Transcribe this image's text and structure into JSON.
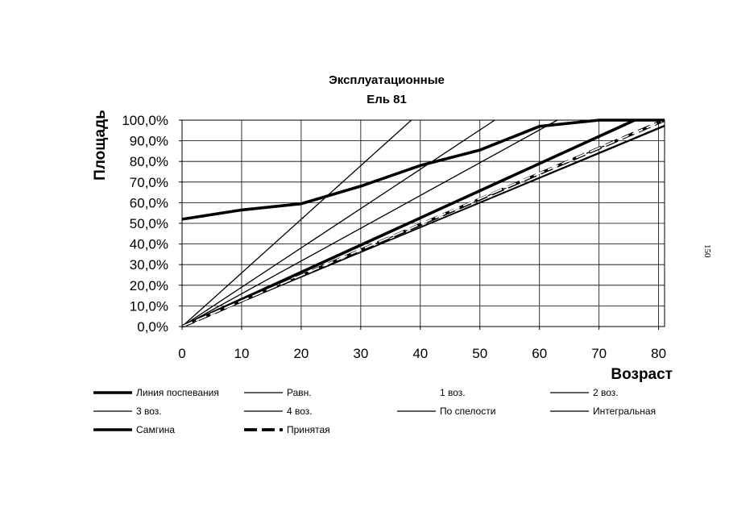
{
  "page_number": "150",
  "chart_data": {
    "type": "line",
    "title": [
      "Эксплуатационные",
      "Ель 81"
    ],
    "xlabel": "Возраст",
    "ylabel": "Площадь",
    "xlim": [
      0,
      81
    ],
    "ylim": [
      0,
      1
    ],
    "x_ticks": [
      0,
      10,
      20,
      30,
      40,
      50,
      60,
      70,
      80
    ],
    "y_ticks": [
      0,
      0.1,
      0.2,
      0.3,
      0.4,
      0.5,
      0.6,
      0.7,
      0.8,
      0.9,
      1.0
    ],
    "y_tick_labels": [
      "0,0%",
      "10,0%",
      "20,0%",
      "30,0%",
      "40,0%",
      "50,0%",
      "60,0%",
      "70,0%",
      "80,0%",
      "90,0%",
      "100,0%"
    ],
    "grid": true,
    "legend_position": "bottom",
    "series": [
      {
        "name": "Линия поспевания",
        "style": "thick",
        "x": [
          0,
          10,
          20,
          30,
          40,
          50,
          60,
          70,
          81
        ],
        "y": [
          0.52,
          0.565,
          0.595,
          0.68,
          0.78,
          0.855,
          0.97,
          1.0,
          1.0
        ]
      },
      {
        "name": "Равн.",
        "style": "thin",
        "x": [
          0,
          38.5
        ],
        "y": [
          0,
          1.0
        ]
      },
      {
        "name": "1 воз.",
        "style": "thin-white",
        "x": [
          0,
          50,
          81
        ],
        "y": [
          0,
          0.62,
          1.0
        ]
      },
      {
        "name": "2 воз.",
        "style": "thin",
        "x": [
          0,
          52.5
        ],
        "y": [
          0,
          1.0
        ]
      },
      {
        "name": "3 воз.",
        "style": "thin",
        "x": [
          0,
          63
        ],
        "y": [
          0,
          1.0
        ]
      },
      {
        "name": "4 воз.",
        "style": "thin",
        "x": [
          0,
          81
        ],
        "y": [
          0,
          1.0
        ]
      },
      {
        "name": "По спелости",
        "style": "thin",
        "x": [
          0,
          81
        ],
        "y": [
          0,
          0.975
        ]
      },
      {
        "name": "Интегральная",
        "style": "thin",
        "x": [
          0,
          81
        ],
        "y": [
          0,
          0.97
        ]
      },
      {
        "name": "Самгина",
        "style": "thick",
        "x": [
          0,
          76
        ],
        "y": [
          0,
          1.0
        ]
      },
      {
        "name": "Принятая",
        "style": "thick-dash",
        "x": [
          0,
          81
        ],
        "y": [
          0,
          1.0
        ]
      }
    ]
  }
}
